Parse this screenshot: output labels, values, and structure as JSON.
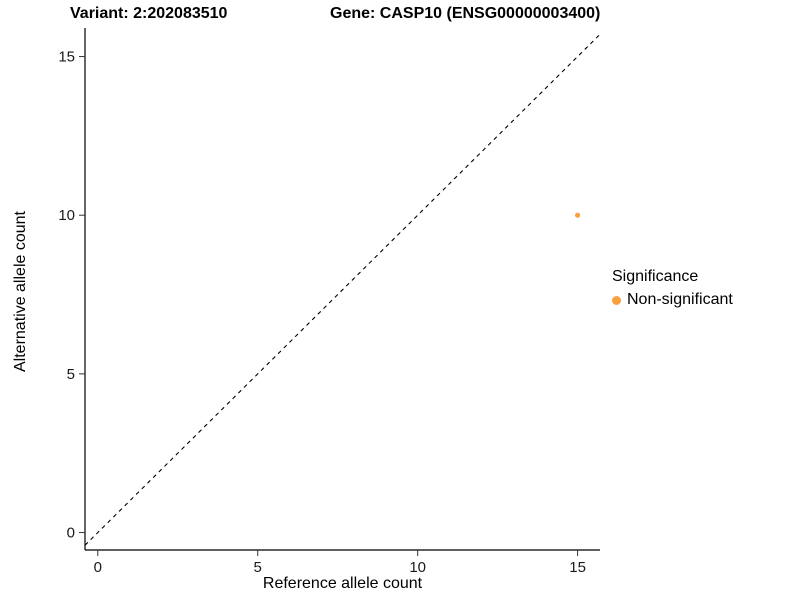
{
  "titles": {
    "variant": "Variant: 2:202083510",
    "gene": "Gene: CASP10 (ENSG00000003400)"
  },
  "axes": {
    "x_label": "Reference allele count",
    "y_label": "Alternative allele count"
  },
  "legend": {
    "title": "Significance",
    "items": [
      {
        "label": "Non-significant",
        "color": "#F9A03F"
      }
    ]
  },
  "chart_data": {
    "type": "scatter",
    "title": "Variant: 2:202083510 — Gene: CASP10 (ENSG00000003400)",
    "xlabel": "Reference allele count",
    "ylabel": "Alternative allele count",
    "xlim": [
      -0.4,
      15.7
    ],
    "ylim": [
      -0.55,
      15.9
    ],
    "x_ticks": [
      0,
      5,
      10,
      15
    ],
    "y_ticks": [
      0,
      5,
      10,
      15
    ],
    "grid": false,
    "legend_position": "right",
    "reference_line": {
      "type": "identity-diagonal",
      "style": "dashed",
      "color": "#000000"
    },
    "series": [
      {
        "name": "Non-significant",
        "color": "#F9A03F",
        "points": [
          {
            "x": 15,
            "y": 10
          }
        ]
      }
    ]
  }
}
